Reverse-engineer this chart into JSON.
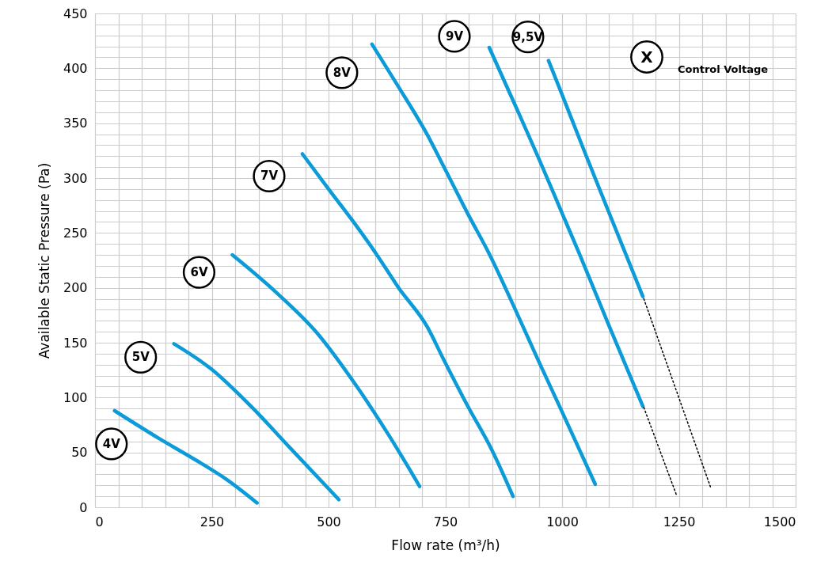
{
  "chart_data": {
    "type": "line",
    "xlabel": "Flow rate (m³/h)",
    "ylabel": "Available Static Pressure (Pa)",
    "xlim": [
      0,
      1500
    ],
    "ylim": [
      0,
      450
    ],
    "xticks": [
      0,
      {
        "value": 50,
        "label": null
      },
      {
        "value": 100,
        "label": null
      },
      {
        "value": 150,
        "label": null
      },
      {
        "value": 200,
        "label": null
      },
      250,
      {
        "value": 300,
        "label": null
      },
      {
        "value": 350,
        "label": null
      },
      {
        "value": 400,
        "label": null
      },
      {
        "value": 450,
        "label": null
      },
      500,
      {
        "value": 550,
        "label": null
      },
      {
        "value": 600,
        "label": null
      },
      {
        "value": 650,
        "label": null
      },
      {
        "value": 700,
        "label": null
      },
      750,
      {
        "value": 800,
        "label": null
      },
      {
        "value": 850,
        "label": null
      },
      {
        "value": 900,
        "label": null
      },
      {
        "value": 950,
        "label": null
      },
      1000,
      {
        "value": 1050,
        "label": null
      },
      {
        "value": 1100,
        "label": null
      },
      {
        "value": 1150,
        "label": null
      },
      {
        "value": 1200,
        "label": null
      },
      1250,
      {
        "value": 1300,
        "label": null
      },
      {
        "value": 1350,
        "label": null
      },
      {
        "value": 1400,
        "label": null
      },
      {
        "value": 1450,
        "label": null
      },
      1500
    ],
    "yticks": [
      0,
      {
        "value": 10,
        "label": null
      },
      {
        "value": 20,
        "label": null
      },
      {
        "value": 30,
        "label": null
      },
      {
        "value": 40,
        "label": null
      },
      50,
      {
        "value": 60,
        "label": null
      },
      {
        "value": 70,
        "label": null
      },
      {
        "value": 80,
        "label": null
      },
      {
        "value": 90,
        "label": null
      },
      100,
      {
        "value": 110,
        "label": null
      },
      {
        "value": 120,
        "label": null
      },
      {
        "value": 130,
        "label": null
      },
      {
        "value": 140,
        "label": null
      },
      150,
      {
        "value": 160,
        "label": null
      },
      {
        "value": 170,
        "label": null
      },
      {
        "value": 180,
        "label": null
      },
      {
        "value": 190,
        "label": null
      },
      200,
      {
        "value": 210,
        "label": null
      },
      {
        "value": 220,
        "label": null
      },
      {
        "value": 230,
        "label": null
      },
      {
        "value": 240,
        "label": null
      },
      250,
      {
        "value": 260,
        "label": null
      },
      {
        "value": 270,
        "label": null
      },
      {
        "value": 280,
        "label": null
      },
      {
        "value": 290,
        "label": null
      },
      300,
      {
        "value": 310,
        "label": null
      },
      {
        "value": 320,
        "label": null
      },
      {
        "value": 330,
        "label": null
      },
      {
        "value": 340,
        "label": null
      },
      350,
      {
        "value": 360,
        "label": null
      },
      {
        "value": 370,
        "label": null
      },
      {
        "value": 380,
        "label": null
      },
      {
        "value": 390,
        "label": null
      },
      400,
      {
        "value": 410,
        "label": null
      },
      {
        "value": 420,
        "label": null
      },
      {
        "value": 430,
        "label": null
      },
      {
        "value": 440,
        "label": null
      },
      450
    ],
    "grid": true,
    "marker": "none",
    "annotations": [
      "X",
      "Control Voltage"
    ],
    "series": [
      {
        "name": "4V",
        "color": "#0a9bd8",
        "line_style": "solid",
        "x": [
          42,
          136,
          220,
          283,
          347
        ],
        "values": [
          88,
          63,
          42,
          25,
          4
        ]
      },
      {
        "name": "5V",
        "color": "#0a9bd8",
        "line_style": "solid",
        "x": [
          169,
          249,
          334,
          418,
          522
        ],
        "values": [
          149,
          126,
          92,
          54,
          7
        ]
      },
      {
        "name": "6V",
        "color": "#0a9bd8",
        "line_style": "solid",
        "x": [
          294,
          390,
          475,
          559,
          633,
          695
        ],
        "values": [
          230,
          195,
          159,
          111,
          63,
          19
        ]
      },
      {
        "name": "7V",
        "color": "#0a9bd8",
        "line_style": "solid",
        "x": [
          444,
          500,
          550,
          602,
          650,
          712,
          746,
          797,
          850,
          895
        ],
        "values": [
          322,
          290,
          262,
          231,
          200,
          164,
          135,
          93,
          52,
          10
        ]
      },
      {
        "name": "8V",
        "color": "#0a9bd8",
        "line_style": "solid",
        "x": [
          593,
          650,
          712,
          746,
          800,
          844,
          900,
          950,
          1000,
          1071
        ],
        "values": [
          422,
          383,
          339,
          311,
          266,
          231,
          180,
          133,
          87,
          21
        ]
      },
      {
        "name": "9V",
        "color": "#0a9bd8",
        "line_style": "solid",
        "x": [
          844,
          900,
          950,
          1000,
          1037,
          1100,
          1173
        ],
        "values": [
          419,
          366,
          318,
          268,
          231,
          166,
          92
        ]
      },
      {
        "name": "9,5V",
        "color": "#0a9bd8",
        "line_style": "solid",
        "x": [
          971,
          1000,
          1050,
          1100,
          1136,
          1173
        ],
        "values": [
          407,
          376,
          322,
          269,
          231,
          192
        ]
      },
      {
        "color": "#000000",
        "line_style": "dotted",
        "x": [
          1175,
          1246
        ],
        "values": [
          91,
          10
        ]
      },
      {
        "color": "#000000",
        "line_style": "dotted",
        "x": [
          1175,
          1319
        ],
        "values": [
          190,
          17
        ]
      }
    ]
  }
}
